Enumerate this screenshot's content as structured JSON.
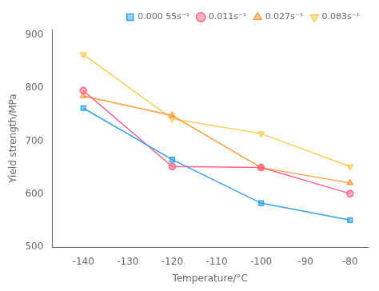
{
  "chart_data": {
    "type": "line",
    "xlabel": "Temperature/°C",
    "ylabel": "Yield strength/MPa",
    "x": [
      -140,
      -120,
      -100,
      -80
    ],
    "series": [
      {
        "name": "0.000 55s⁻¹",
        "marker": "square",
        "values": [
          762,
          665,
          583,
          551
        ]
      },
      {
        "name": "0.011s⁻¹",
        "marker": "circle",
        "values": [
          795,
          652,
          650,
          601
        ]
      },
      {
        "name": "0.027s⁻¹",
        "marker": "triangle-up",
        "values": [
          785,
          748,
          650,
          621
        ]
      },
      {
        "name": "0.083s⁻¹",
        "marker": "triangle-down",
        "values": [
          863,
          742,
          714,
          652
        ]
      }
    ],
    "xlim": [
      -147,
      -76
    ],
    "ylim": [
      500,
      910
    ],
    "xticks": [
      -140,
      -130,
      -120,
      -110,
      -100,
      -90,
      -80
    ],
    "yticks": [
      500,
      600,
      700,
      800,
      900
    ],
    "grid": false,
    "legend": "upper right"
  }
}
